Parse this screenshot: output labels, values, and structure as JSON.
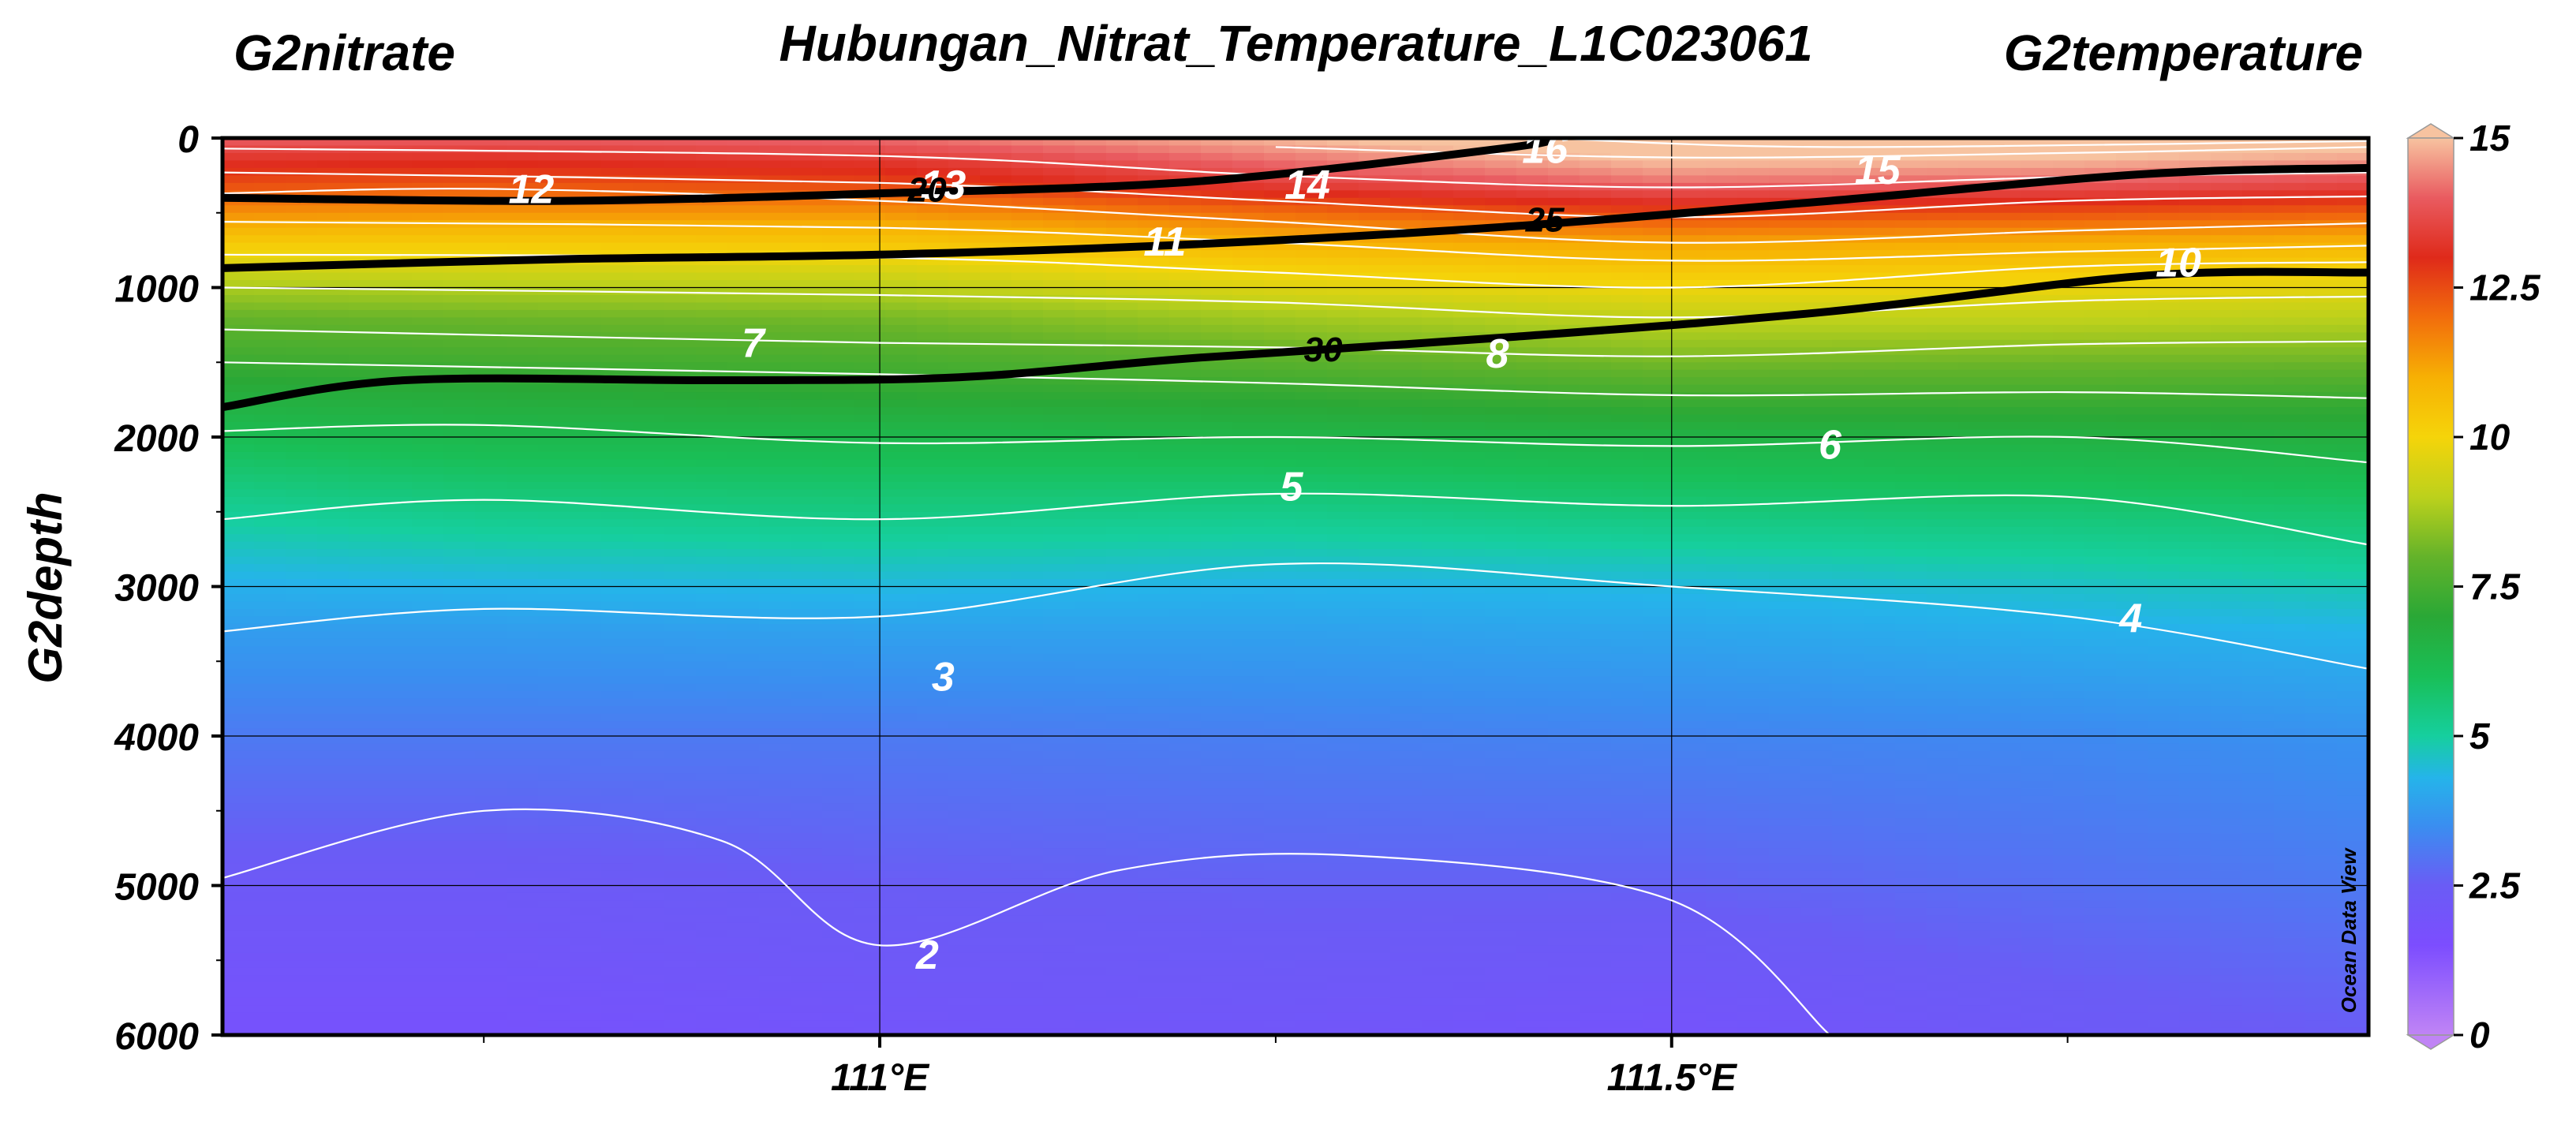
{
  "header": {
    "title": "Hubungan_Nitrat_Temperature_L1C023061",
    "left_variable": "G2nitrate",
    "right_variable": "G2temperature"
  },
  "watermark": "Ocean Data View",
  "chart_data": {
    "type": "heatmap",
    "title": "Hubungan_Nitrat_Temperature_L1C023061",
    "xlabel": "",
    "ylabel": "G2depth",
    "x_range": [
      110.585,
      111.94
    ],
    "y_range": [
      0,
      6000
    ],
    "y_inverted": true,
    "x_ticks": [
      {
        "value": 111.0,
        "label": "111°E"
      },
      {
        "value": 111.5,
        "label": "111.5°E"
      }
    ],
    "y_ticks": [
      {
        "value": 0,
        "label": "0"
      },
      {
        "value": 1000,
        "label": "1000"
      },
      {
        "value": 2000,
        "label": "2000"
      },
      {
        "value": 3000,
        "label": "3000"
      },
      {
        "value": 4000,
        "label": "4000"
      },
      {
        "value": 5000,
        "label": "5000"
      },
      {
        "value": 6000,
        "label": "6000"
      }
    ],
    "grid": true,
    "colorbar": {
      "variable": "G2temperature",
      "range": [
        0,
        15
      ],
      "ticks": [
        {
          "value": 15,
          "label": "15"
        },
        {
          "value": 12.5,
          "label": "12.5"
        },
        {
          "value": 10,
          "label": "10"
        },
        {
          "value": 7.5,
          "label": "7.5"
        },
        {
          "value": 5,
          "label": "5"
        },
        {
          "value": 2.5,
          "label": "2.5"
        },
        {
          "value": 0,
          "label": "0"
        }
      ],
      "stops": [
        {
          "value": 0,
          "color": "#c084f5"
        },
        {
          "value": 1.5,
          "color": "#7c4dff"
        },
        {
          "value": 2.5,
          "color": "#6a5cf5"
        },
        {
          "value": 3.5,
          "color": "#3a8ef0"
        },
        {
          "value": 4.3,
          "color": "#25b4ea"
        },
        {
          "value": 5.0,
          "color": "#16cf9e"
        },
        {
          "value": 6.0,
          "color": "#19bf57"
        },
        {
          "value": 7.0,
          "color": "#2aa836"
        },
        {
          "value": 8.0,
          "color": "#64b32a"
        },
        {
          "value": 9.0,
          "color": "#bcd11c"
        },
        {
          "value": 10.0,
          "color": "#f5d40a"
        },
        {
          "value": 11.0,
          "color": "#f7b004"
        },
        {
          "value": 12.0,
          "color": "#f26d0c"
        },
        {
          "value": 13.0,
          "color": "#df2a1a"
        },
        {
          "value": 14.0,
          "color": "#e95b60"
        },
        {
          "value": 15.0,
          "color": "#f7c3a0"
        }
      ]
    },
    "temperature_field": {
      "description_x": [
        110.585,
        110.75,
        111.0,
        111.25,
        111.5,
        111.75,
        111.94
      ],
      "columns": [
        {
          "x": 110.585,
          "depths": [
            0,
            150,
            300,
            500,
            700,
            900,
            1200,
            1500,
            1700,
            2000,
            2500,
            3000,
            3300,
            4000,
            5000,
            6000
          ],
          "temps": [
            14,
            13.2,
            12.5,
            11.5,
            10.3,
            9.2,
            8,
            7.3,
            6.8,
            6.1,
            5.1,
            4.2,
            3.8,
            3.1,
            2.3,
            1.8
          ]
        },
        {
          "x": 110.75,
          "depths": [
            0,
            150,
            300,
            500,
            700,
            900,
            1200,
            1500,
            1700,
            2000,
            2500,
            3000,
            3300,
            4000,
            5000,
            6000
          ],
          "temps": [
            14,
            13.1,
            12.4,
            11.4,
            10.3,
            9.3,
            8.1,
            7.4,
            6.9,
            6.3,
            5.3,
            4.3,
            3.8,
            3.1,
            2.3,
            1.8
          ]
        },
        {
          "x": 111.0,
          "depths": [
            0,
            150,
            300,
            500,
            700,
            900,
            1200,
            1500,
            1700,
            2000,
            2500,
            3000,
            3300,
            4000,
            5000,
            6000
          ],
          "temps": [
            14.2,
            13.3,
            12.6,
            11.4,
            10.4,
            9.4,
            8.2,
            7.5,
            7.1,
            6.3,
            5.4,
            4.4,
            3.9,
            3.1,
            2.5,
            2.0
          ]
        },
        {
          "x": 111.25,
          "depths": [
            0,
            150,
            300,
            500,
            700,
            900,
            1200,
            1500,
            1700,
            2000,
            2500,
            3000,
            3300,
            4000,
            5000,
            6000
          ],
          "temps": [
            14.9,
            14.2,
            13.5,
            12.0,
            10.9,
            10.0,
            8.7,
            7.8,
            7.2,
            6.4,
            5.3,
            4.3,
            3.9,
            3.2,
            2.6,
            2.1
          ]
        },
        {
          "x": 111.5,
          "depths": [
            0,
            150,
            300,
            500,
            700,
            900,
            1200,
            1500,
            1700,
            2000,
            2500,
            3000,
            3300,
            4000,
            5000,
            6000
          ],
          "temps": [
            15.7,
            15.0,
            14.2,
            12.6,
            11.2,
            10.3,
            9.1,
            8.2,
            7.5,
            6.5,
            5.5,
            4.4,
            4.0,
            3.3,
            2.6,
            1.9
          ]
        },
        {
          "x": 111.75,
          "depths": [
            0,
            150,
            300,
            500,
            700,
            900,
            1200,
            1500,
            1700,
            2000,
            2500,
            3000,
            3300,
            4000,
            5000,
            6000
          ],
          "temps": [
            15.6,
            14.9,
            14.0,
            12.4,
            11.0,
            10.2,
            9.1,
            8.1,
            7.5,
            6.6,
            5.6,
            4.6,
            4.2,
            3.4,
            2.9,
            2.3
          ]
        },
        {
          "x": 111.94,
          "depths": [
            0,
            150,
            300,
            500,
            700,
            900,
            1200,
            1500,
            1700,
            2000,
            2500,
            3000,
            3300,
            4000,
            5000,
            6000
          ],
          "temps": [
            15.5,
            14.6,
            13.7,
            12.2,
            10.9,
            10.0,
            9.0,
            8.1,
            7.4,
            6.7,
            5.7,
            4.8,
            4.3,
            3.6,
            3.1,
            2.5
          ]
        }
      ]
    },
    "temperature_contours": [
      {
        "level": 16,
        "label": "16",
        "points": [
          [
            111.42,
            0
          ],
          [
            111.6,
            60
          ],
          [
            111.94,
            20
          ]
        ]
      },
      {
        "level": 15,
        "label": "15",
        "points": [
          [
            111.25,
            60
          ],
          [
            111.5,
            130
          ],
          [
            111.75,
            100
          ],
          [
            111.94,
            60
          ]
        ]
      },
      {
        "level": 14,
        "label": "14",
        "points": [
          [
            110.585,
            70
          ],
          [
            111.0,
            120
          ],
          [
            111.25,
            250
          ],
          [
            111.5,
            330
          ],
          [
            111.75,
            260
          ],
          [
            111.94,
            230
          ]
        ]
      },
      {
        "level": 13,
        "label": "13",
        "points": [
          [
            110.585,
            230
          ],
          [
            111.0,
            300
          ],
          [
            111.25,
            420
          ],
          [
            111.5,
            530
          ],
          [
            111.75,
            420
          ],
          [
            111.94,
            390
          ]
        ]
      },
      {
        "level": 12,
        "label": "12",
        "points": [
          [
            110.585,
            370
          ],
          [
            110.75,
            340
          ],
          [
            111.0,
            420
          ],
          [
            111.25,
            560
          ],
          [
            111.5,
            700
          ],
          [
            111.75,
            620
          ],
          [
            111.94,
            570
          ]
        ]
      },
      {
        "level": 11,
        "label": "11",
        "points": [
          [
            110.585,
            560
          ],
          [
            111.0,
            600
          ],
          [
            111.25,
            700
          ],
          [
            111.5,
            820
          ],
          [
            111.75,
            760
          ],
          [
            111.94,
            720
          ]
        ]
      },
      {
        "level": 10,
        "label": "10",
        "points": [
          [
            110.585,
            780
          ],
          [
            111.0,
            800
          ],
          [
            111.25,
            900
          ],
          [
            111.5,
            1000
          ],
          [
            111.75,
            860
          ],
          [
            111.94,
            830
          ]
        ]
      },
      {
        "level": 9,
        "label": "",
        "points": [
          [
            110.585,
            1000
          ],
          [
            111.0,
            1050
          ],
          [
            111.25,
            1100
          ],
          [
            111.5,
            1200
          ],
          [
            111.75,
            1090
          ],
          [
            111.94,
            1060
          ]
        ]
      },
      {
        "level": 8,
        "label": "8",
        "points": [
          [
            110.585,
            1280
          ],
          [
            111.0,
            1370
          ],
          [
            111.25,
            1400
          ],
          [
            111.5,
            1460
          ],
          [
            111.75,
            1380
          ],
          [
            111.94,
            1360
          ]
        ]
      },
      {
        "level": 7,
        "label": "7",
        "points": [
          [
            110.585,
            1500
          ],
          [
            111.0,
            1580
          ],
          [
            111.25,
            1640
          ],
          [
            111.5,
            1720
          ],
          [
            111.75,
            1700
          ],
          [
            111.94,
            1740
          ]
        ]
      },
      {
        "level": 6,
        "label": "6",
        "points": [
          [
            110.585,
            1960
          ],
          [
            110.75,
            1920
          ],
          [
            111.0,
            2040
          ],
          [
            111.25,
            2000
          ],
          [
            111.5,
            2060
          ],
          [
            111.75,
            2000
          ],
          [
            111.94,
            2170
          ]
        ]
      },
      {
        "level": 5,
        "label": "5",
        "points": [
          [
            110.585,
            2550
          ],
          [
            110.75,
            2420
          ],
          [
            111.0,
            2550
          ],
          [
            111.25,
            2380
          ],
          [
            111.5,
            2460
          ],
          [
            111.75,
            2400
          ],
          [
            111.94,
            2720
          ]
        ]
      },
      {
        "level": 4,
        "label": "4",
        "points": [
          [
            110.585,
            3300
          ],
          [
            110.75,
            3150
          ],
          [
            111.0,
            3200
          ],
          [
            111.25,
            2850
          ],
          [
            111.5,
            3000
          ],
          [
            111.75,
            3200
          ],
          [
            111.94,
            3550
          ]
        ]
      },
      {
        "level": 3,
        "label": "3",
        "points": [
          [
            110.585,
            4950
          ],
          [
            110.75,
            4500
          ],
          [
            110.9,
            4700
          ],
          [
            111.0,
            5400
          ],
          [
            111.15,
            4900
          ],
          [
            111.3,
            4800
          ],
          [
            111.5,
            5100
          ],
          [
            111.6,
            6000
          ]
        ]
      },
      {
        "level": 2,
        "label": "2",
        "points": []
      }
    ],
    "nitrate_contours": [
      {
        "level": 20,
        "label": "20",
        "points": [
          [
            110.585,
            400
          ],
          [
            110.8,
            420
          ],
          [
            111.0,
            370
          ],
          [
            111.2,
            290
          ],
          [
            111.4,
            60
          ],
          [
            111.42,
            0
          ]
        ]
      },
      {
        "level": 25,
        "label": "25",
        "points": [
          [
            110.585,
            870
          ],
          [
            110.8,
            810
          ],
          [
            111.0,
            780
          ],
          [
            111.2,
            710
          ],
          [
            111.4,
            590
          ],
          [
            111.6,
            420
          ],
          [
            111.8,
            240
          ],
          [
            111.94,
            200
          ]
        ]
      },
      {
        "level": 30,
        "label": "30",
        "points": [
          [
            110.585,
            1800
          ],
          [
            110.7,
            1620
          ],
          [
            110.9,
            1620
          ],
          [
            111.05,
            1600
          ],
          [
            111.2,
            1470
          ],
          [
            111.4,
            1330
          ],
          [
            111.6,
            1160
          ],
          [
            111.8,
            920
          ],
          [
            111.94,
            900
          ]
        ]
      }
    ],
    "temperature_label_positions": [
      {
        "label": "16",
        "x": 111.42,
        "y": 60
      },
      {
        "label": "15",
        "x": 111.63,
        "y": 200
      },
      {
        "label": "14",
        "x": 111.27,
        "y": 300
      },
      {
        "label": "13",
        "x": 111.04,
        "y": 300
      },
      {
        "label": "12",
        "x": 110.78,
        "y": 330
      },
      {
        "label": "11",
        "x": 111.18,
        "y": 680
      },
      {
        "label": "10",
        "x": 111.82,
        "y": 820
      },
      {
        "label": "8",
        "x": 111.39,
        "y": 1430
      },
      {
        "label": "7",
        "x": 110.92,
        "y": 1360
      },
      {
        "label": "6",
        "x": 111.6,
        "y": 2040
      },
      {
        "label": "5",
        "x": 111.26,
        "y": 2320
      },
      {
        "label": "4",
        "x": 111.79,
        "y": 3200
      },
      {
        "label": "3",
        "x": 111.04,
        "y": 3590
      },
      {
        "label": "2",
        "x": 111.03,
        "y": 5450
      }
    ],
    "nitrate_label_positions": [
      {
        "label": "20",
        "x": 111.03,
        "y": 340
      },
      {
        "label": "25",
        "x": 111.42,
        "y": 540
      },
      {
        "label": "30",
        "x": 111.28,
        "y": 1410
      }
    ]
  }
}
